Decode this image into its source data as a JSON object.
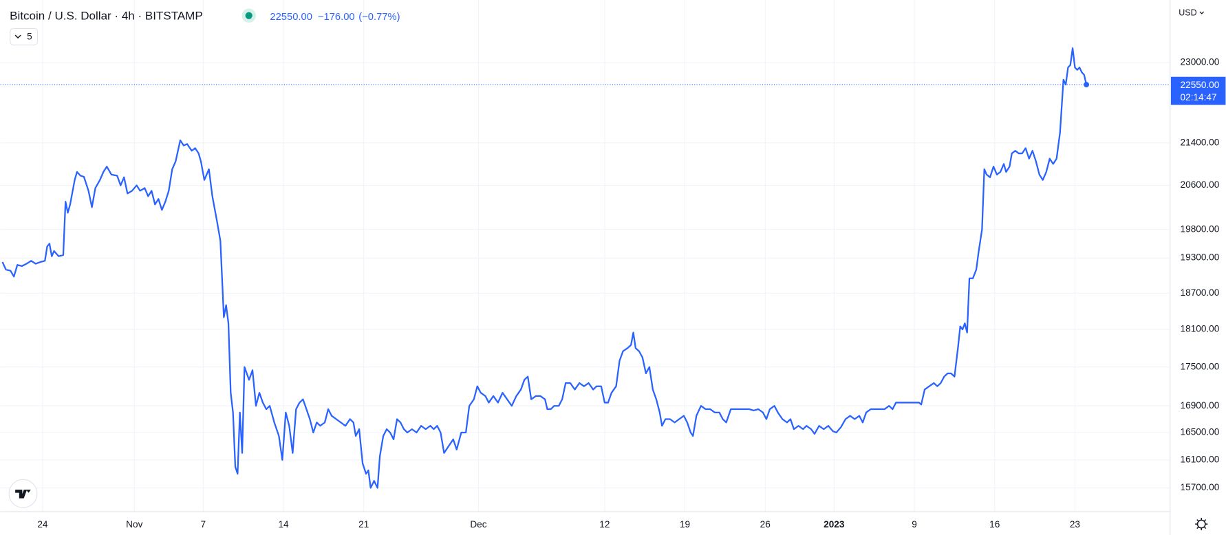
{
  "header": {
    "symbol": "Bitcoin / U.S. Dollar · 4h · BITSTAMP",
    "price": "22550.00",
    "change": "−176.00",
    "change_pct": "(−0.77%)",
    "indicator_count": "5",
    "currency": "USD",
    "countdown": "02:14:47"
  },
  "chart_data": {
    "type": "line",
    "color": "#2962ff",
    "log_scale": true,
    "grid": true,
    "xlim": [
      -3.68,
      98.3
    ],
    "ylim": [
      15370,
      24330
    ],
    "xticks": [
      {
        "value": 0,
        "label": "24"
      },
      {
        "value": 8,
        "label": "Nov"
      },
      {
        "value": 14,
        "label": "7"
      },
      {
        "value": 21,
        "label": "14"
      },
      {
        "value": 28,
        "label": "21"
      },
      {
        "value": 38,
        "label": "Dec"
      },
      {
        "value": 49,
        "label": "12"
      },
      {
        "value": 56,
        "label": "19"
      },
      {
        "value": 63,
        "label": "26"
      },
      {
        "value": 69,
        "label": "2023"
      },
      {
        "value": 76,
        "label": "9"
      },
      {
        "value": 83,
        "label": "16"
      },
      {
        "value": 90,
        "label": "23"
      }
    ],
    "yticks": [
      {
        "value": 23000,
        "label": "23000.00"
      },
      {
        "value": 21400,
        "label": "21400.00"
      },
      {
        "value": 20600,
        "label": "20600.00"
      },
      {
        "value": 19800,
        "label": "19800.00"
      },
      {
        "value": 19300,
        "label": "19300.00"
      },
      {
        "value": 18700,
        "label": "18700.00"
      },
      {
        "value": 18100,
        "label": "18100.00"
      },
      {
        "value": 17500,
        "label": "17500.00"
      },
      {
        "value": 16900,
        "label": "16900.00"
      },
      {
        "value": 16500,
        "label": "16500.00"
      },
      {
        "value": 16100,
        "label": "16100.00"
      },
      {
        "value": 15700,
        "label": "15700.00"
      }
    ],
    "x": [
      -3.5,
      -3.2,
      -2.8,
      -2.5,
      -2.2,
      -1.8,
      -1.4,
      -1.0,
      -0.6,
      -0.2,
      0.2,
      0.4,
      0.6,
      0.8,
      1.0,
      1.4,
      1.8,
      2.0,
      2.2,
      2.4,
      2.8,
      3.0,
      3.3,
      3.6,
      4.0,
      4.3,
      4.6,
      5.0,
      5.3,
      5.6,
      6.0,
      6.5,
      6.8,
      7.1,
      7.4,
      7.8,
      8.2,
      8.5,
      8.9,
      9.2,
      9.5,
      9.8,
      10.1,
      10.4,
      10.7,
      11.0,
      11.3,
      11.6,
      12.0,
      12.3,
      12.6,
      13.0,
      13.3,
      13.6,
      13.8,
      14.1,
      14.5,
      14.8,
      15.2,
      15.5,
      15.8,
      16.0,
      16.2,
      16.4,
      16.6,
      16.8,
      17.0,
      17.2,
      17.4,
      17.6,
      17.8,
      18.0,
      18.3,
      18.6,
      18.9,
      19.2,
      19.5,
      19.8,
      20.2,
      20.6,
      20.9,
      21.2,
      21.5,
      21.8,
      22.1,
      22.4,
      22.7,
      23.0,
      23.3,
      23.6,
      23.9,
      24.2,
      24.6,
      24.9,
      25.2,
      25.6,
      26.0,
      26.4,
      26.8,
      27.1,
      27.3,
      27.6,
      27.9,
      28.2,
      28.4,
      28.6,
      28.9,
      29.2,
      29.4,
      29.7,
      30.0,
      30.3,
      30.6,
      30.9,
      31.2,
      31.5,
      31.8,
      32.2,
      32.6,
      33.0,
      33.4,
      33.8,
      34.1,
      34.4,
      34.7,
      35.0,
      35.4,
      35.8,
      36.1,
      36.5,
      36.9,
      37.2,
      37.6,
      37.9,
      38.2,
      38.6,
      38.9,
      39.3,
      39.7,
      40.1,
      40.5,
      40.9,
      41.3,
      41.7,
      42.0,
      42.3,
      42.6,
      43.0,
      43.4,
      43.8,
      44.0,
      44.3,
      44.6,
      45.0,
      45.3,
      45.6,
      46.0,
      46.4,
      46.8,
      47.2,
      47.6,
      48.0,
      48.3,
      48.7,
      49.0,
      49.3,
      49.6,
      50.0,
      50.3,
      50.6,
      51.0,
      51.3,
      51.5,
      51.7,
      52.0,
      52.3,
      52.6,
      52.9,
      53.2,
      53.5,
      53.8,
      54.0,
      54.3,
      54.7,
      55.1,
      55.5,
      55.9,
      56.2,
      56.5,
      56.7,
      57.0,
      57.4,
      57.8,
      58.2,
      58.6,
      59.0,
      59.3,
      59.6,
      60.0,
      60.4,
      60.8,
      61.2,
      61.6,
      62.0,
      62.4,
      62.8,
      63.1,
      63.4,
      63.8,
      64.1,
      64.5,
      64.9,
      65.2,
      65.5,
      65.9,
      66.3,
      66.6,
      67.0,
      67.3,
      67.7,
      68.1,
      68.5,
      68.9,
      69.2,
      69.6,
      70.0,
      70.4,
      70.8,
      71.2,
      71.5,
      71.8,
      72.2,
      72.6,
      73.0,
      73.4,
      73.8,
      74.1,
      74.4,
      74.8,
      75.2,
      75.6,
      76.0,
      76.2,
      76.4,
      76.6,
      76.9,
      77.3,
      77.7,
      78.0,
      78.3,
      78.6,
      78.9,
      79.2,
      79.5,
      79.8,
      80.0,
      80.2,
      80.4,
      80.6,
      80.8,
      81.1,
      81.4,
      81.6,
      81.9,
      82.1,
      82.3,
      82.6,
      82.9,
      83.2,
      83.5,
      83.8,
      84.0,
      84.3,
      84.5,
      84.8,
      85.1,
      85.4,
      85.7,
      86.0,
      86.3,
      86.6,
      86.9,
      87.2,
      87.5,
      87.8,
      88.1,
      88.4,
      88.7,
      89.0,
      89.2,
      89.4,
      89.6,
      89.8,
      90.0,
      90.2,
      90.4,
      90.6,
      90.8,
      91.0
    ],
    "values": [
      19230,
      19100,
      19080,
      18980,
      19180,
      19160,
      19200,
      19250,
      19200,
      19230,
      19250,
      19500,
      19550,
      19330,
      19420,
      19330,
      19350,
      20300,
      20100,
      20250,
      20700,
      20850,
      20780,
      20760,
      20500,
      20200,
      20550,
      20700,
      20850,
      20950,
      20800,
      20780,
      20600,
      20750,
      20450,
      20500,
      20600,
      20500,
      20550,
      20400,
      20500,
      20250,
      20350,
      20150,
      20300,
      20500,
      20900,
      21050,
      21450,
      21350,
      21380,
      21250,
      21300,
      21200,
      21050,
      20700,
      20900,
      20400,
      19950,
      19600,
      18300,
      18500,
      18200,
      17100,
      16800,
      16000,
      15900,
      16800,
      16200,
      17500,
      17400,
      17300,
      17450,
      16900,
      17100,
      16950,
      16850,
      16900,
      16650,
      16450,
      16100,
      16800,
      16600,
      16200,
      16850,
      16950,
      17000,
      16850,
      16700,
      16500,
      16650,
      16600,
      16650,
      16850,
      16750,
      16700,
      16650,
      16600,
      16700,
      16650,
      16450,
      16550,
      16050,
      15900,
      15950,
      15700,
      15800,
      15700,
      16150,
      16450,
      16550,
      16500,
      16400,
      16700,
      16650,
      16550,
      16500,
      16550,
      16500,
      16600,
      16550,
      16600,
      16550,
      16600,
      16500,
      16200,
      16300,
      16400,
      16250,
      16500,
      16500,
      16900,
      17000,
      17200,
      17100,
      17050,
      16950,
      17050,
      16950,
      17100,
      17000,
      16900,
      17050,
      17150,
      17300,
      17350,
      17000,
      17050,
      17050,
      17000,
      16850,
      16850,
      16900,
      16900,
      17000,
      17250,
      17250,
      17150,
      17250,
      17200,
      17250,
      17150,
      17200,
      17200,
      16950,
      16950,
      17100,
      17200,
      17600,
      17750,
      17800,
      17850,
      18050,
      17800,
      17750,
      17650,
      17400,
      17500,
      17150,
      17000,
      16800,
      16600,
      16700,
      16700,
      16650,
      16700,
      16750,
      16650,
      16500,
      16450,
      16750,
      16900,
      16850,
      16850,
      16800,
      16800,
      16700,
      16650,
      16850,
      16850,
      16850,
      16850,
      16850,
      16830,
      16850,
      16800,
      16700,
      16850,
      16900,
      16800,
      16700,
      16650,
      16700,
      16550,
      16600,
      16550,
      16600,
      16550,
      16480,
      16600,
      16550,
      16600,
      16520,
      16500,
      16580,
      16700,
      16750,
      16700,
      16750,
      16650,
      16800,
      16850,
      16850,
      16850,
      16850,
      16900,
      16850,
      16950,
      16950,
      16950,
      16950,
      16950,
      16950,
      16950,
      16920,
      17150,
      17200,
      17250,
      17200,
      17250,
      17350,
      17400,
      17400,
      17350,
      17800,
      18150,
      18100,
      18200,
      18050,
      18950,
      18950,
      19100,
      19400,
      19800,
      20900,
      20800,
      20750,
      20950,
      20800,
      20850,
      21000,
      20850,
      20950,
      21200,
      21250,
      21200,
      21200,
      21300,
      21100,
      21250,
      21050,
      20800,
      20700,
      20850,
      21100,
      21000,
      21100,
      21600,
      22650,
      22550,
      22900,
      22950,
      23300,
      22900,
      22850,
      22900,
      22800,
      22750,
      22550
    ]
  }
}
